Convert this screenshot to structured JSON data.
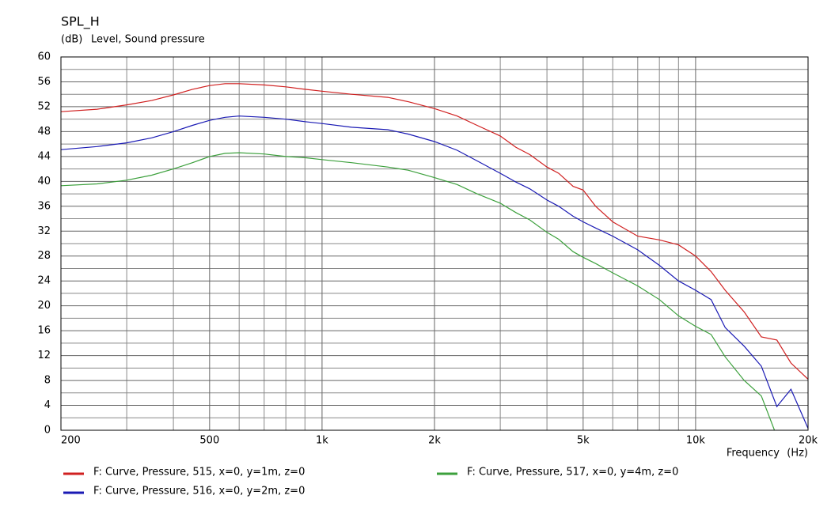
{
  "chart_data": {
    "type": "line",
    "title": "SPL_H",
    "y_unit": "(dB)",
    "ylabel": "Level, Sound pressure",
    "xlabel": "Frequency",
    "x_unit": "(Hz)",
    "log_x": true,
    "grid": true,
    "legend": "bottom",
    "x": [
      200,
      250,
      300,
      350,
      400,
      450,
      500,
      550,
      600,
      700,
      800,
      900,
      1000,
      1200,
      1500,
      1700,
      2000,
      2300,
      2600,
      3000,
      3300,
      3600,
      4000,
      4300,
      4700,
      5000,
      5400,
      6000,
      7000,
      8000,
      9000,
      10000,
      11000,
      12000,
      13500,
      15000,
      16500,
      18000,
      20000
    ],
    "series": [
      {
        "name": "F: Curve, Pressure, 515, x=0, y=1m, z=0",
        "color": "#d02020",
        "values": [
          51.2,
          51.6,
          52.3,
          53,
          53.9,
          54.8,
          55.4,
          55.7,
          55.7,
          55.5,
          55.2,
          54.8,
          54.5,
          54,
          53.5,
          52.8,
          51.7,
          50.5,
          49,
          47.3,
          45.5,
          44.3,
          42.3,
          41.3,
          39.2,
          38.6,
          36,
          33.5,
          31.2,
          30.6,
          29.8,
          28,
          25.5,
          22.5,
          19,
          15,
          14.5,
          10.8,
          8.2
        ]
      },
      {
        "name": "F: Curve, Pressure, 516, x=0, y=2m, z=0",
        "color": "#1a1ab4",
        "values": [
          45.1,
          45.6,
          46.2,
          47,
          48,
          49,
          49.8,
          50.3,
          50.5,
          50.3,
          50,
          49.6,
          49.3,
          48.7,
          48.3,
          47.6,
          46.4,
          45,
          43.3,
          41.3,
          39.9,
          38.8,
          37,
          36,
          34.4,
          33.5,
          32.5,
          31.2,
          29,
          26.5,
          24,
          22.5,
          21,
          16.5,
          13.5,
          10.3,
          3.8,
          6.6,
          0.3
        ]
      },
      {
        "name": "F: Curve, Pressure, 517, x=0, y=4m, z=0",
        "color": "#3ca03c",
        "values": [
          39.3,
          39.6,
          40.2,
          41,
          42,
          43,
          44,
          44.5,
          44.6,
          44.4,
          44,
          43.8,
          43.5,
          43,
          42.3,
          41.8,
          40.6,
          39.5,
          38,
          36.5,
          35,
          33.8,
          31.8,
          30.7,
          28.7,
          27.8,
          26.8,
          25.3,
          23.2,
          21,
          18.4,
          16.7,
          15.4,
          11.8,
          8,
          5.5,
          -1,
          null,
          null
        ]
      }
    ],
    "xlim": [
      200,
      20000
    ],
    "xticks": [
      200,
      500,
      {
        "value": 1000,
        "label": "1k"
      },
      {
        "value": 2000,
        "label": "2k"
      },
      {
        "value": 5000,
        "label": "5k"
      },
      {
        "value": 10000,
        "label": "10k"
      },
      {
        "value": 20000,
        "label": "20k"
      }
    ],
    "xminor": [
      300,
      400,
      600,
      700,
      800,
      900,
      3000,
      4000,
      6000,
      7000,
      8000,
      9000
    ],
    "ylim": [
      0,
      60
    ],
    "yticks": [
      0,
      4,
      8,
      12,
      16,
      20,
      24,
      28,
      32,
      36,
      40,
      44,
      48,
      52,
      56,
      60
    ],
    "yminor": [
      2,
      6,
      10,
      14,
      18,
      22,
      26,
      30,
      34,
      38,
      42,
      46,
      50,
      54,
      58
    ]
  }
}
